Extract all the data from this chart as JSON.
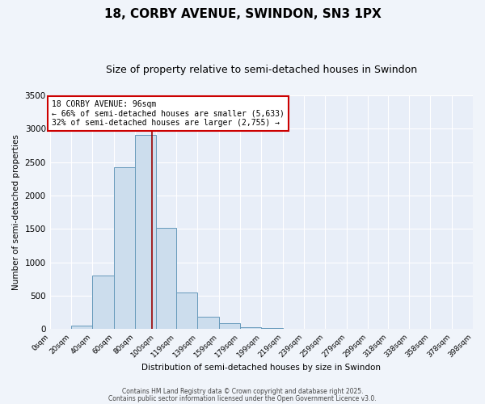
{
  "title1": "18, CORBY AVENUE, SWINDON, SN3 1PX",
  "title2": "Size of property relative to semi-detached houses in Swindon",
  "xlabel": "Distribution of semi-detached houses by size in Swindon",
  "ylabel": "Number of semi-detached properties",
  "property_size": 96,
  "bar_color": "#ccdded",
  "bar_edge_color": "#6699bb",
  "vline_color": "#990000",
  "annotation_box_edge_color": "#cc0000",
  "annotation_title": "18 CORBY AVENUE: 96sqm",
  "annotation_line1": "← 66% of semi-detached houses are smaller (5,633)",
  "annotation_line2": "32% of semi-detached houses are larger (2,755) →",
  "footer1": "Contains HM Land Registry data © Crown copyright and database right 2025.",
  "footer2": "Contains public sector information licensed under the Open Government Licence v3.0.",
  "bin_edges": [
    0,
    20,
    40,
    60,
    80,
    100,
    119,
    139,
    159,
    179,
    199,
    219,
    239,
    259,
    279,
    299,
    318,
    338,
    358,
    378,
    398
  ],
  "bin_counts": [
    0,
    50,
    800,
    2420,
    2900,
    1520,
    555,
    185,
    90,
    35,
    20,
    5,
    5,
    5,
    5,
    5,
    5,
    5,
    5,
    5
  ],
  "ylim": [
    0,
    3500
  ],
  "yticks": [
    0,
    500,
    1000,
    1500,
    2000,
    2500,
    3000,
    3500
  ],
  "background_color": "#f0f4fa",
  "plot_bg_color": "#e8eef8",
  "title1_fontsize": 11,
  "title2_fontsize": 9,
  "figsize": [
    6.0,
    5.0
  ],
  "dpi": 100
}
